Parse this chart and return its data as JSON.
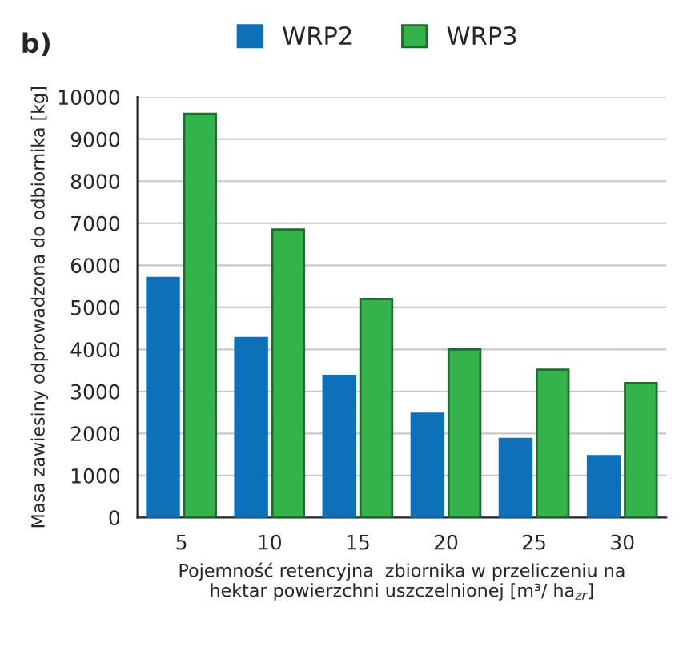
{
  "chart_data": {
    "type": "bar",
    "title": "b)",
    "xlabel": "Pojemność retencyjna  zbiornika w przeliczeniu na\nhektar powierzchni uszczelnionej [m³/ ha$_{zr}$]",
    "ylabel": "Masa zawiesiny odprowadzona do odbiornika [kg]",
    "categories": [
      "5",
      "10",
      "15",
      "20",
      "25",
      "30"
    ],
    "series": [
      {
        "name": "WRP2",
        "color": "#0e70b8",
        "values": [
          5700,
          4270,
          3370,
          2470,
          1870,
          1460
        ]
      },
      {
        "name": "WRP3",
        "color": "#33b34a",
        "values": [
          9600,
          6850,
          5200,
          4000,
          3520,
          3200
        ]
      }
    ],
    "ylim": [
      0,
      10000
    ],
    "yticks": [
      0,
      1000,
      2000,
      3000,
      4000,
      5000,
      6000,
      7000,
      8000,
      9000,
      10000
    ],
    "grid": "y",
    "legend": "top"
  }
}
